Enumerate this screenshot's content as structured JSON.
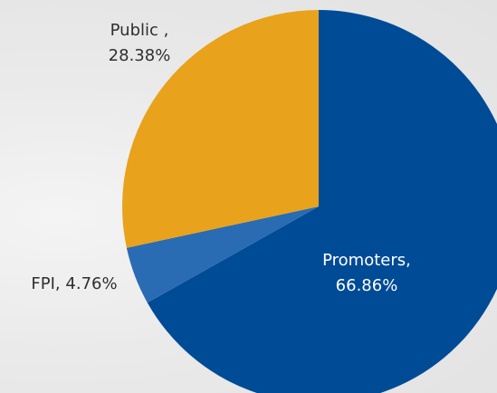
{
  "chart_data": {
    "type": "pie",
    "categories": [
      "Promoters",
      "FPI",
      "Public"
    ],
    "values": [
      66.86,
      4.76,
      28.38
    ],
    "unit": "%",
    "colors": [
      "#004b95",
      "#2a6cb3",
      "#e9a21c"
    ],
    "labels": {
      "public": {
        "name": "Public ,",
        "value": "28.38%"
      },
      "fpi": {
        "name": "FPI,",
        "value": "4.76%"
      },
      "promoters": {
        "name": "Promoters,",
        "value": "66.86%"
      }
    },
    "start_angle_deg": 0,
    "direction": "clockwise",
    "legend": "none"
  }
}
